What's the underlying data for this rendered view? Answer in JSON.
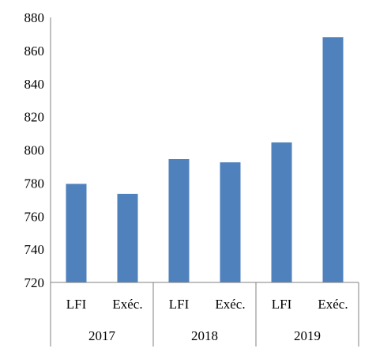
{
  "chart_data": {
    "type": "bar",
    "title": "",
    "xlabel": "",
    "ylabel": "",
    "ylim": [
      720,
      880
    ],
    "yticks": [
      720,
      740,
      760,
      780,
      800,
      820,
      840,
      860,
      880
    ],
    "groups": [
      "2017",
      "2018",
      "2019"
    ],
    "categories": [
      "LFI",
      "Exéc.",
      "LFI",
      "Exéc.",
      "LFI",
      "Exéc."
    ],
    "category_group": [
      "2017",
      "2017",
      "2018",
      "2018",
      "2019",
      "2019"
    ],
    "values": [
      779.5,
      773.5,
      794.5,
      792.5,
      804.5,
      868
    ],
    "bar_color": "#4f81bd",
    "grid": false,
    "legend": "none"
  }
}
